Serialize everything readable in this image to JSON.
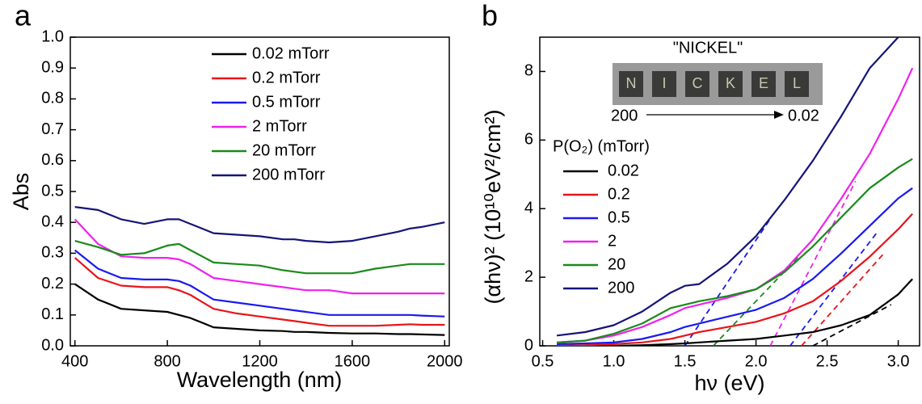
{
  "chart_data": [
    {
      "type": "line",
      "panel_label": "a",
      "xlabel": "Wavelength (nm)",
      "ylabel": "Abs",
      "xlim": [
        380,
        2020
      ],
      "ylim": [
        0,
        1.0
      ],
      "xticks": [
        400,
        800,
        1200,
        1600,
        2000
      ],
      "yticks": [
        {
          "value": 0,
          "label": "0.0"
        },
        0.1,
        0.2,
        0.3,
        0.4,
        0.5,
        0.6,
        0.7,
        0.8,
        0.9,
        {
          "value": 1,
          "label": "1.0"
        }
      ],
      "legend": "upper center",
      "x": [
        400,
        500,
        600,
        700,
        800,
        850,
        900,
        1000,
        1100,
        1200,
        1300,
        1350,
        1400,
        1500,
        1600,
        1700,
        1800,
        1850,
        1900,
        2000
      ],
      "series": [
        {
          "name": "0.02 mTorr",
          "color": "#000000",
          "values": [
            0.2,
            0.15,
            0.12,
            0.115,
            0.11,
            0.1,
            0.09,
            0.06,
            0.055,
            0.05,
            0.048,
            0.045,
            0.045,
            0.042,
            0.04,
            0.04,
            0.038,
            0.038,
            0.037,
            0.035
          ]
        },
        {
          "name": "0.2 mTorr",
          "color": "#e8141a",
          "values": [
            0.285,
            0.22,
            0.195,
            0.19,
            0.19,
            0.18,
            0.165,
            0.12,
            0.105,
            0.095,
            0.085,
            0.08,
            0.075,
            0.065,
            0.065,
            0.065,
            0.068,
            0.07,
            0.068,
            0.068
          ]
        },
        {
          "name": "0.5 mTorr",
          "color": "#1a1aee",
          "values": [
            0.31,
            0.25,
            0.22,
            0.215,
            0.215,
            0.21,
            0.195,
            0.15,
            0.14,
            0.13,
            0.12,
            0.115,
            0.11,
            0.1,
            0.1,
            0.1,
            0.1,
            0.1,
            0.098,
            0.095
          ]
        },
        {
          "name": "2 mTorr",
          "color": "#ee22ee",
          "values": [
            0.41,
            0.33,
            0.29,
            0.285,
            0.285,
            0.28,
            0.265,
            0.22,
            0.21,
            0.2,
            0.19,
            0.185,
            0.18,
            0.18,
            0.17,
            0.17,
            0.17,
            0.17,
            0.17,
            0.17
          ]
        },
        {
          "name": "20 mTorr",
          "color": "#1a8a1a",
          "values": [
            0.34,
            0.32,
            0.295,
            0.3,
            0.325,
            0.33,
            0.31,
            0.27,
            0.265,
            0.26,
            0.245,
            0.24,
            0.235,
            0.235,
            0.235,
            0.25,
            0.26,
            0.265,
            0.265,
            0.265
          ]
        },
        {
          "name": "200 mTorr",
          "color": "#14147a",
          "values": [
            0.45,
            0.44,
            0.41,
            0.395,
            0.41,
            0.41,
            0.395,
            0.365,
            0.36,
            0.355,
            0.345,
            0.345,
            0.34,
            0.335,
            0.34,
            0.355,
            0.37,
            0.38,
            0.385,
            0.4
          ]
        }
      ]
    },
    {
      "type": "line",
      "panel_label": "b",
      "xlabel": "hν (eV)",
      "ylabel": "(αhν)² (10¹⁰eV²/cm²)",
      "xlim": [
        0.48,
        3.15
      ],
      "ylim": [
        0,
        9
      ],
      "xticks": [
        0.5,
        {
          "value": 1,
          "label": "1.0"
        },
        1.5,
        {
          "value": 2,
          "label": "2.0"
        },
        2.5,
        {
          "value": 3,
          "label": "3.0"
        }
      ],
      "yticks": [
        0,
        2,
        4,
        6,
        8
      ],
      "legend": "center left",
      "legend_title": "P(O₂) (mTorr)",
      "x": [
        0.6,
        0.8,
        1.0,
        1.2,
        1.4,
        1.5,
        1.6,
        1.8,
        2.0,
        2.2,
        2.4,
        2.6,
        2.8,
        3.0,
        3.1
      ],
      "series": [
        {
          "name": "0.02",
          "color": "#000000",
          "values": [
            0,
            0,
            0,
            0.02,
            0.05,
            0.07,
            0.1,
            0.15,
            0.2,
            0.3,
            0.4,
            0.6,
            0.9,
            1.5,
            1.95
          ]
        },
        {
          "name": "0.2",
          "color": "#e8141a",
          "values": [
            0,
            0.02,
            0.05,
            0.1,
            0.2,
            0.3,
            0.4,
            0.55,
            0.7,
            0.95,
            1.3,
            1.9,
            2.6,
            3.4,
            3.85
          ]
        },
        {
          "name": "0.5",
          "color": "#1a1aee",
          "values": [
            0.05,
            0.07,
            0.1,
            0.2,
            0.4,
            0.55,
            0.65,
            0.85,
            1.05,
            1.4,
            1.95,
            2.7,
            3.5,
            4.3,
            4.6
          ]
        },
        {
          "name": "2",
          "color": "#ee22ee",
          "values": [
            0.1,
            0.15,
            0.3,
            0.55,
            0.9,
            1.1,
            1.2,
            1.4,
            1.65,
            2.2,
            3.1,
            4.3,
            5.6,
            7.2,
            8.1
          ]
        },
        {
          "name": "20",
          "color": "#1a8a1a",
          "values": [
            0.1,
            0.15,
            0.35,
            0.65,
            1.1,
            1.2,
            1.3,
            1.45,
            1.65,
            2.15,
            2.9,
            3.75,
            4.6,
            5.2,
            5.45
          ]
        },
        {
          "name": "200",
          "color": "#14147a",
          "values": [
            0.3,
            0.4,
            0.6,
            1.0,
            1.55,
            1.75,
            1.8,
            2.4,
            3.2,
            4.25,
            5.4,
            6.7,
            8.1,
            9.0,
            null
          ]
        }
      ],
      "tangents": [
        {
          "color": "#000000",
          "x": [
            2.4,
            2.95
          ],
          "values": [
            0,
            1.2
          ]
        },
        {
          "color": "#e8141a",
          "x": [
            2.32,
            2.9
          ],
          "values": [
            0,
            2.7
          ]
        },
        {
          "color": "#1a1aee",
          "x": [
            2.24,
            2.85
          ],
          "values": [
            0,
            3.3
          ]
        },
        {
          "color": "#ee22ee",
          "x": [
            2.1,
            2.7
          ],
          "values": [
            0,
            4.8
          ]
        },
        {
          "color": "#1a8a1a",
          "x": [
            1.7,
            2.3
          ],
          "values": [
            0,
            2.6
          ]
        },
        {
          "color": "#1a1aee",
          "x": [
            1.5,
            2.1
          ],
          "values": [
            0,
            3.7
          ]
        }
      ],
      "inset": {
        "title": "\"NICKEL\"",
        "left_label": "200",
        "right_label": "0.02",
        "letters": [
          "N",
          "I",
          "C",
          "K",
          "E",
          "L"
        ]
      }
    }
  ]
}
